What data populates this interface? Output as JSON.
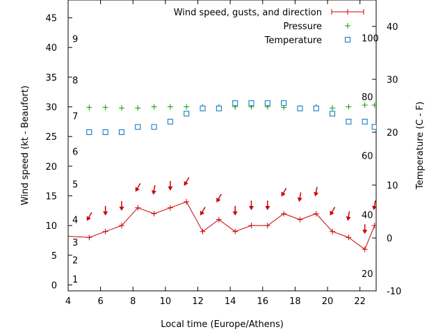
{
  "chart_data": {
    "type": "line",
    "x_label": "Local time (Europe/Athens)",
    "y_label_left": "Wind speed (kt - Beaufort)",
    "y_label_right": "Temperature (C - F)",
    "x_range": [
      4,
      23
    ],
    "y_left_range": [
      -1,
      48
    ],
    "y_right_range": [
      -10,
      45
    ],
    "x_ticks": [
      4,
      6,
      8,
      10,
      12,
      14,
      16,
      18,
      20,
      22
    ],
    "y_left_ticks": [
      0,
      5,
      10,
      15,
      20,
      25,
      30,
      35,
      40,
      45
    ],
    "y_right_ticks": [
      -10,
      0,
      10,
      20,
      30,
      40
    ],
    "beaufort_labels": [
      {
        "label": "1",
        "y": 1
      },
      {
        "label": "2",
        "y": 4.2
      },
      {
        "label": "3",
        "y": 7.2
      },
      {
        "label": "4",
        "y": 11
      },
      {
        "label": "5",
        "y": 17
      },
      {
        "label": "6",
        "y": 22.5
      },
      {
        "label": "7",
        "y": 28.5
      },
      {
        "label": "8",
        "y": 34.5
      },
      {
        "label": "9",
        "y": 41.5
      }
    ],
    "fahrenheit_labels": [
      {
        "label": "20",
        "t": -6.7
      },
      {
        "label": "40",
        "t": 4.4
      },
      {
        "label": "60",
        "t": 15.6
      },
      {
        "label": "80",
        "t": 26.7
      },
      {
        "label": "100",
        "t": 37.8
      }
    ],
    "legend": [
      {
        "label": "Wind speed, gusts, and direction",
        "color": "#cc0000",
        "symbol": "line-plus"
      },
      {
        "label": "Pressure",
        "color": "#00a000",
        "symbol": "plus"
      },
      {
        "label": "Temperature",
        "color": "#0070c0",
        "symbol": "square"
      }
    ],
    "series": [
      {
        "name": "Wind speed, gusts, and direction",
        "color": "#cc0000",
        "x": [
          4,
          5.3,
          6.3,
          7.3,
          8.3,
          9.3,
          10.3,
          11.3,
          12.3,
          13.3,
          14.3,
          15.3,
          16.3,
          17.3,
          18.3,
          19.3,
          20.3,
          21.3,
          22.3,
          22.9
        ],
        "y": [
          8.2,
          8,
          9,
          10,
          13,
          12,
          13,
          14,
          9,
          11,
          9,
          10,
          10,
          12,
          11,
          12,
          9,
          8,
          6,
          10
        ]
      },
      {
        "name": "Pressure",
        "color": "#00a000",
        "x": [
          5.3,
          6.3,
          7.3,
          8.3,
          9.3,
          10.3,
          11.3,
          12.3,
          13.3,
          14.3,
          15.3,
          16.3,
          17.3,
          18.3,
          19.3,
          20.3,
          21.3,
          22.3,
          22.9
        ],
        "y": [
          29.9,
          29.9,
          29.8,
          29.8,
          30,
          30,
          30,
          30,
          30,
          30,
          30,
          30,
          29.9,
          29.8,
          30,
          29.8,
          30,
          30.3,
          30.3
        ]
      },
      {
        "name": "Temperature",
        "color": "#0070c0",
        "x": [
          5.3,
          6.3,
          7.3,
          8.3,
          9.3,
          10.3,
          11.3,
          12.3,
          13.3,
          14.3,
          15.3,
          16.3,
          17.3,
          18.3,
          19.3,
          20.3,
          21.3,
          22.3,
          22.9
        ],
        "y": [
          20,
          20,
          20,
          21,
          21,
          22,
          23.5,
          24.5,
          24.5,
          25.5,
          25.5,
          25.5,
          25.5,
          24.5,
          24.5,
          23.5,
          22,
          22,
          21
        ]
      }
    ],
    "wind_direction_arrows": {
      "x": [
        5.3,
        6.3,
        7.3,
        8.3,
        9.3,
        10.3,
        11.3,
        12.3,
        13.3,
        14.3,
        15.3,
        16.3,
        17.3,
        18.3,
        19.3,
        20.3,
        21.3,
        22.3,
        22.9
      ],
      "y": [
        11.5,
        12.5,
        13.3,
        16.4,
        16,
        16.7,
        17.4,
        12.4,
        14.6,
        12.5,
        13.4,
        13.4,
        15.6,
        14.8,
        15.7,
        12.4,
        11.6,
        9.4,
        13.4
      ],
      "rotation_deg": [
        30,
        0,
        0,
        30,
        10,
        0,
        30,
        30,
        30,
        0,
        0,
        0,
        30,
        10,
        10,
        30,
        10,
        0,
        10
      ]
    }
  }
}
